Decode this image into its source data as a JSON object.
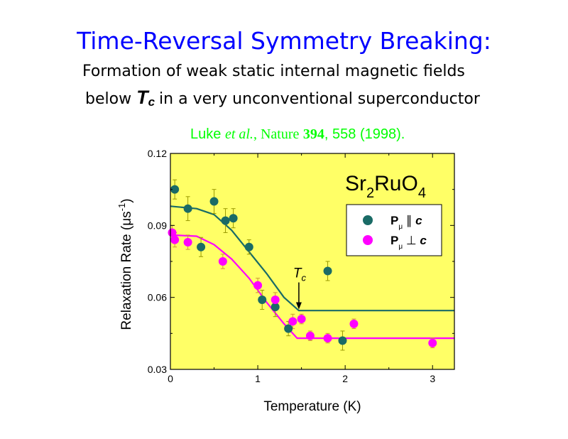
{
  "slide": {
    "title": "Time-Reversal Symmetry Breaking:",
    "subtitle_line1": "Formation of weak static internal magnetic fields",
    "subtitle_line2_pre": "below",
    "subtitle_tc_symbol": "T",
    "subtitle_tc_sub": "c",
    "subtitle_line2_post": "in a very unconventional superconductor",
    "citation_author": "Luke",
    "citation_etal": "et al.",
    "citation_journal": ", Nature",
    "citation_volume": "394",
    "citation_rest": ", 558 (1998)."
  },
  "colors": {
    "title": "#0000ff",
    "citation": "#00ff00",
    "plot_background": "#ffff66",
    "series_parallel": "#1a6b66",
    "series_perp": "#ff00ff",
    "errorbar_parallel": "#999900",
    "errorbar_perp": "#cc9933"
  },
  "chart_data": {
    "type": "scatter",
    "xlabel": "Temperature (K)",
    "ylabel_main": "Relaxation Rate (",
    "ylabel_mu": "μ",
    "ylabel_s": "s",
    "ylabel_exp": "-1",
    "ylabel_close": ")",
    "xlim": [
      0,
      3.25
    ],
    "ylim": [
      0.03,
      0.12
    ],
    "xticks": [
      0,
      1,
      2,
      3
    ],
    "xtick_labels": [
      "0",
      "1",
      "2",
      "3"
    ],
    "yticks": [
      0.03,
      0.06,
      0.09,
      0.12
    ],
    "ytick_labels": [
      "0.03",
      "0.06",
      "0.09",
      "0.12"
    ],
    "compound": {
      "a": "Sr",
      "a_sub": "2",
      "b": "RuO",
      "b_sub": "4"
    },
    "tc_annotation": {
      "symbol": "T",
      "sub": "c",
      "x": 1.47,
      "y": 0.055
    },
    "series": [
      {
        "name": "P_mu || c",
        "legend_label": "P",
        "legend_sub": "μ",
        "legend_relation": "∥",
        "legend_axis": "c",
        "marker": "circle",
        "points": [
          {
            "x": 0.05,
            "y": 0.105,
            "err": 0.004
          },
          {
            "x": 0.2,
            "y": 0.097,
            "err": 0.005
          },
          {
            "x": 0.35,
            "y": 0.081,
            "err": 0.004
          },
          {
            "x": 0.5,
            "y": 0.1,
            "err": 0.005
          },
          {
            "x": 0.63,
            "y": 0.092,
            "err": 0.005
          },
          {
            "x": 0.72,
            "y": 0.093,
            "err": 0.004
          },
          {
            "x": 0.9,
            "y": 0.081,
            "err": 0.003
          },
          {
            "x": 1.05,
            "y": 0.059,
            "err": 0.004
          },
          {
            "x": 1.2,
            "y": 0.056,
            "err": 0.004
          },
          {
            "x": 1.35,
            "y": 0.047,
            "err": 0.003
          },
          {
            "x": 1.8,
            "y": 0.071,
            "err": 0.004
          },
          {
            "x": 1.97,
            "y": 0.042,
            "err": 0.004
          }
        ],
        "fit": [
          {
            "x": 0,
            "y": 0.098
          },
          {
            "x": 0.3,
            "y": 0.097
          },
          {
            "x": 0.5,
            "y": 0.0945
          },
          {
            "x": 0.7,
            "y": 0.088
          },
          {
            "x": 0.9,
            "y": 0.079
          },
          {
            "x": 1.1,
            "y": 0.07
          },
          {
            "x": 1.3,
            "y": 0.06
          },
          {
            "x": 1.47,
            "y": 0.0545
          },
          {
            "x": 3.25,
            "y": 0.0545
          }
        ]
      },
      {
        "name": "P_mu ⊥ c",
        "legend_label": "P",
        "legend_sub": "μ",
        "legend_relation": "⊥",
        "legend_axis": "c",
        "marker": "circle",
        "points": [
          {
            "x": 0.02,
            "y": 0.087,
            "err": 0.003
          },
          {
            "x": 0.05,
            "y": 0.084,
            "err": 0.003
          },
          {
            "x": 0.2,
            "y": 0.083,
            "err": 0.003
          },
          {
            "x": 0.6,
            "y": 0.075,
            "err": 0.003
          },
          {
            "x": 1.0,
            "y": 0.065,
            "err": 0.003
          },
          {
            "x": 1.2,
            "y": 0.059,
            "err": 0.003
          },
          {
            "x": 1.4,
            "y": 0.05,
            "err": 0.003
          },
          {
            "x": 1.5,
            "y": 0.051,
            "err": 0.002
          },
          {
            "x": 1.6,
            "y": 0.044,
            "err": 0.002
          },
          {
            "x": 1.8,
            "y": 0.043,
            "err": 0.002
          },
          {
            "x": 2.1,
            "y": 0.049,
            "err": 0.002
          },
          {
            "x": 3.0,
            "y": 0.041,
            "err": 0.002
          }
        ],
        "fit": [
          {
            "x": 0,
            "y": 0.086
          },
          {
            "x": 0.3,
            "y": 0.0855
          },
          {
            "x": 0.5,
            "y": 0.082
          },
          {
            "x": 0.7,
            "y": 0.076
          },
          {
            "x": 0.9,
            "y": 0.068
          },
          {
            "x": 1.1,
            "y": 0.058
          },
          {
            "x": 1.3,
            "y": 0.049
          },
          {
            "x": 1.45,
            "y": 0.043
          },
          {
            "x": 3.25,
            "y": 0.043
          }
        ]
      }
    ],
    "grid": false,
    "legend_position": "top-right"
  }
}
